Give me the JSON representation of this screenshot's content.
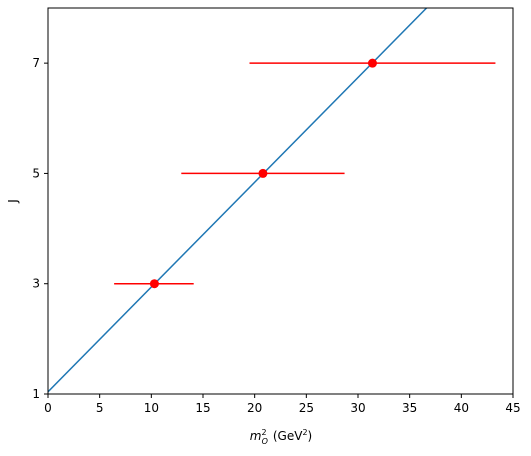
{
  "chart_data": {
    "type": "scatter",
    "xlabel_base": "m",
    "xlabel_sup": "2",
    "xlabel_sub": "O",
    "xlabel_unit_base": "(GeV",
    "xlabel_unit_sup": "2",
    "xlabel_unit_close": ")",
    "ylabel": "J",
    "xlim": [
      0,
      45
    ],
    "ylim": [
      1,
      8
    ],
    "xticks": [
      0,
      5,
      10,
      15,
      20,
      25,
      30,
      35,
      40,
      45
    ],
    "yticks": [
      1,
      3,
      5,
      7
    ],
    "grid": false,
    "points": [
      {
        "x": 10.3,
        "y": 3,
        "xerr_low": 6.4,
        "xerr_high": 14.1
      },
      {
        "x": 20.8,
        "y": 5,
        "xerr_low": 12.9,
        "xerr_high": 28.7
      },
      {
        "x": 31.4,
        "y": 7,
        "xerr_low": 19.5,
        "xerr_high": 43.3
      }
    ],
    "fit_line": {
      "slope": 0.19,
      "intercept": 1.04
    },
    "colors": {
      "points": "#ff0000",
      "fit_line": "#1f77b4"
    }
  }
}
